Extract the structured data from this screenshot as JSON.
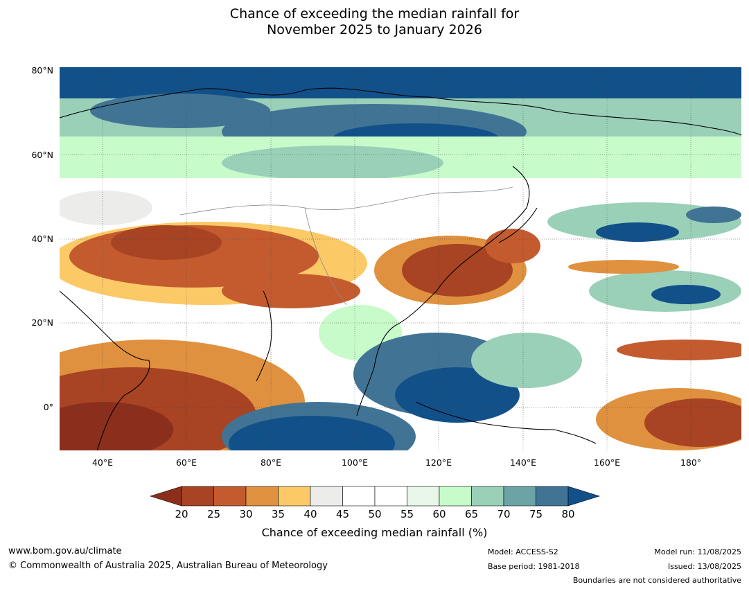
{
  "title": {
    "line1": "Chance of exceeding the median rainfall for",
    "line2": "November 2025 to January 2026"
  },
  "map": {
    "region": "Asia / Western Pacific",
    "lat_labels": [
      "80°N",
      "60°N",
      "40°N",
      "20°N",
      "0°"
    ],
    "lon_labels": [
      "40°E",
      "60°E",
      "80°E",
      "100°E",
      "120°E",
      "140°E",
      "160°E",
      "180°"
    ],
    "colors": {
      "ocean_bg": "#ffffff",
      "coastline": "#000000",
      "boundary": "#888888",
      "gridline": "#444444"
    }
  },
  "colorbar": {
    "ticks": [
      "20",
      "25",
      "30",
      "35",
      "40",
      "45",
      "50",
      "55",
      "60",
      "65",
      "70",
      "75",
      "80"
    ],
    "colors": [
      "#8b2f1c",
      "#a84323",
      "#c45b2e",
      "#e0913f",
      "#fcc967",
      "#ececea",
      "#ffffff",
      "#ffffff",
      "#e8f5e9",
      "#c7fbc9",
      "#9ad0b8",
      "#6ba3a6",
      "#417494",
      "#12508a"
    ],
    "label": "Chance of exceeding median rainfall (%)"
  },
  "footer": {
    "url": "www.bom.gov.au/climate",
    "copyright": "© Commonwealth of Australia 2025, Australian Bureau of Meteorology",
    "model": "Model: ACCESS-S2",
    "base_period": "Base period: 1981-2018",
    "model_run": "Model run: 11/08/2025",
    "issued": "Issued: 13/08/2025",
    "disclaimer": "Boundaries are not considered authoritative"
  }
}
